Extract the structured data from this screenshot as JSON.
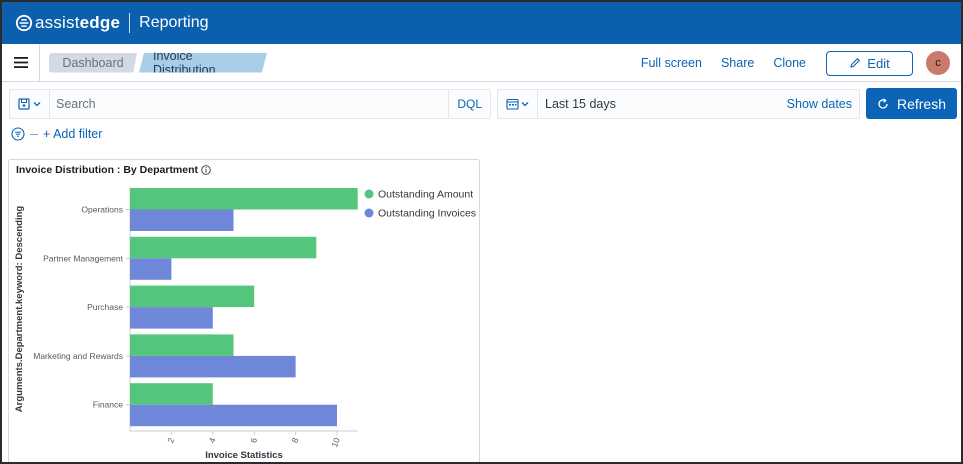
{
  "brand": {
    "logo_light": "assist",
    "logo_bold": "edge",
    "app_name": "Reporting"
  },
  "breadcrumbs": [
    "Dashboard",
    "Invoice Distribution"
  ],
  "nav_actions": {
    "full_screen": "Full screen",
    "share": "Share",
    "clone": "Clone",
    "edit": "Edit"
  },
  "user": {
    "avatar_initial": "c"
  },
  "query": {
    "placeholder": "Search",
    "language": "DQL"
  },
  "time": {
    "range": "Last 15 days",
    "show_dates": "Show dates",
    "refresh": "Refresh"
  },
  "filters": {
    "add_filter": "+ Add filter"
  },
  "panel": {
    "title": "Invoice Distribution : By Department"
  },
  "icons": {
    "menu": "hamburger-icon",
    "saved_query": "saved-query-icon",
    "calendar": "calendar-icon",
    "refresh": "refresh-icon",
    "edit": "pencil-icon",
    "filter": "filter-icon",
    "info": "info-icon"
  },
  "colors": {
    "header": "#0b5fad",
    "primary": "#0b64b5",
    "series_amount": "#54c67c",
    "series_invoices": "#6f87d8"
  },
  "chart_data": {
    "type": "bar",
    "orientation": "horizontal",
    "categories": [
      "Operations",
      "Partner Management",
      "Purchase",
      "Marketing and Rewards",
      "Finance"
    ],
    "series": [
      {
        "name": "Outstanding Amount",
        "values": [
          11,
          9,
          6,
          5,
          4
        ],
        "color": "#54c67c"
      },
      {
        "name": "Outstanding Invoices",
        "values": [
          5,
          2,
          4,
          8,
          10
        ],
        "color": "#6f87d8"
      }
    ],
    "xlabel": "Invoice Statistics",
    "ylabel": "Arguments.Department.keyword: Descending",
    "xticks": [
      2,
      4,
      6,
      8,
      10
    ],
    "xlim": [
      0,
      11
    ],
    "legend_position": "top-right",
    "grid": false
  }
}
